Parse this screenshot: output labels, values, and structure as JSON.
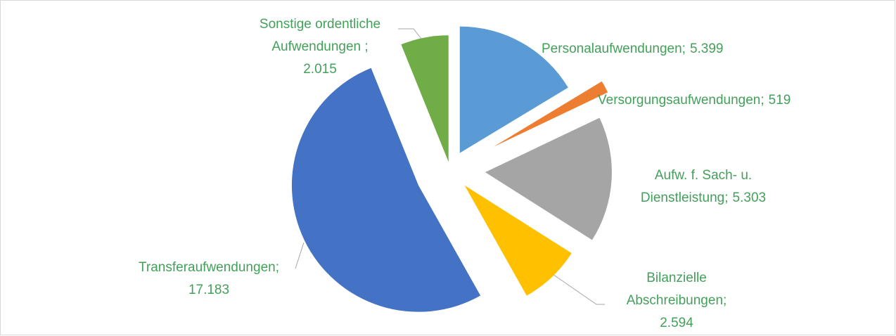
{
  "chart_data": {
    "type": "pie",
    "categories": [
      "Personalaufwendungen;",
      "Versorgungsaufwendungen;",
      "Aufw. f. Sach- u. Dienstleistung;",
      "Bilanzielle Abschreibungen;",
      "Transferaufwendungen;",
      "Sonstige ordentliche Aufwendungen ;"
    ],
    "values": [
      5399,
      519,
      5303,
      2594,
      17183,
      2015
    ],
    "value_labels": [
      "5.399",
      "519",
      "5.303",
      "2.594",
      "17.183",
      "2.015"
    ],
    "colors": [
      "#5b9bd5",
      "#ed7d31",
      "#a5a5a5",
      "#ffc000",
      "#4472c4",
      "#70ad47"
    ]
  }
}
